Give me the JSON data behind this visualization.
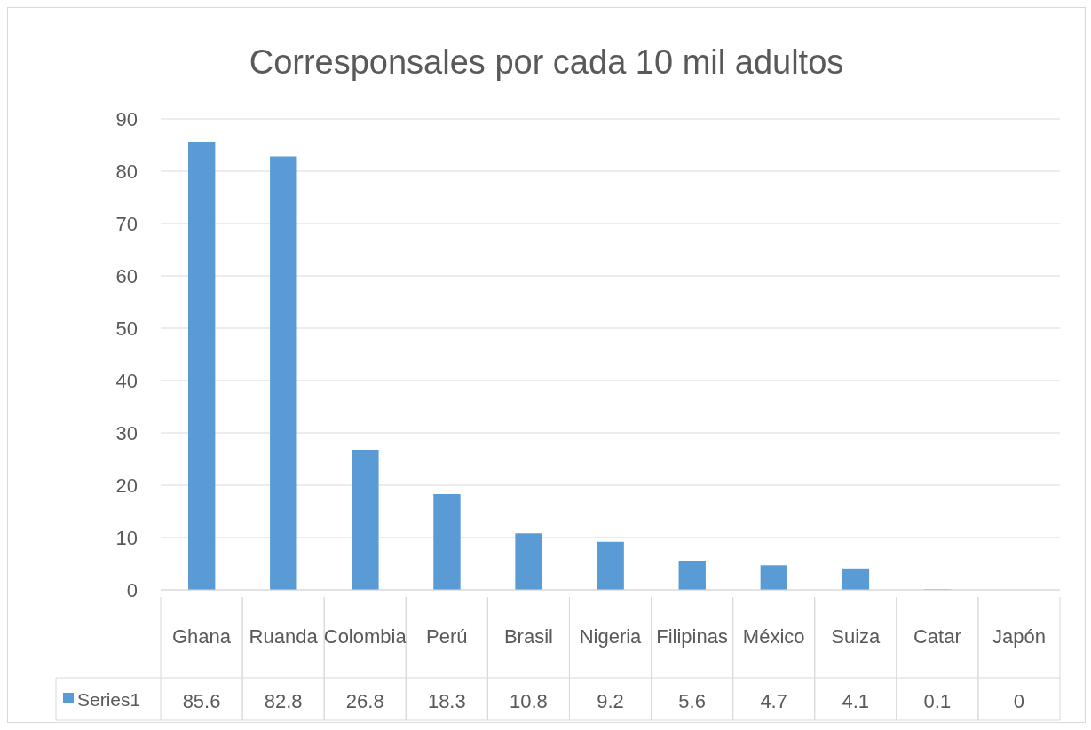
{
  "chart_data": {
    "type": "bar",
    "title": "Corresponsales por cada 10 mil adultos",
    "categories": [
      "Ghana",
      "Ruanda",
      "Colombia",
      "Perú",
      "Brasil",
      "Nigeria",
      "Filipinas",
      "México",
      "Suiza",
      "Catar",
      "Japón"
    ],
    "series": [
      {
        "name": "Series1",
        "color": "#5b9bd5",
        "values": [
          85.6,
          82.8,
          26.8,
          18.3,
          10.8,
          9.2,
          5.6,
          4.7,
          4.1,
          0.1,
          0
        ]
      }
    ],
    "ylim": [
      0,
      90
    ],
    "yticks": [
      0,
      10,
      20,
      30,
      40,
      50,
      60,
      70,
      80,
      90
    ],
    "grid": "y",
    "legend": "bottom",
    "data_labels": true
  }
}
